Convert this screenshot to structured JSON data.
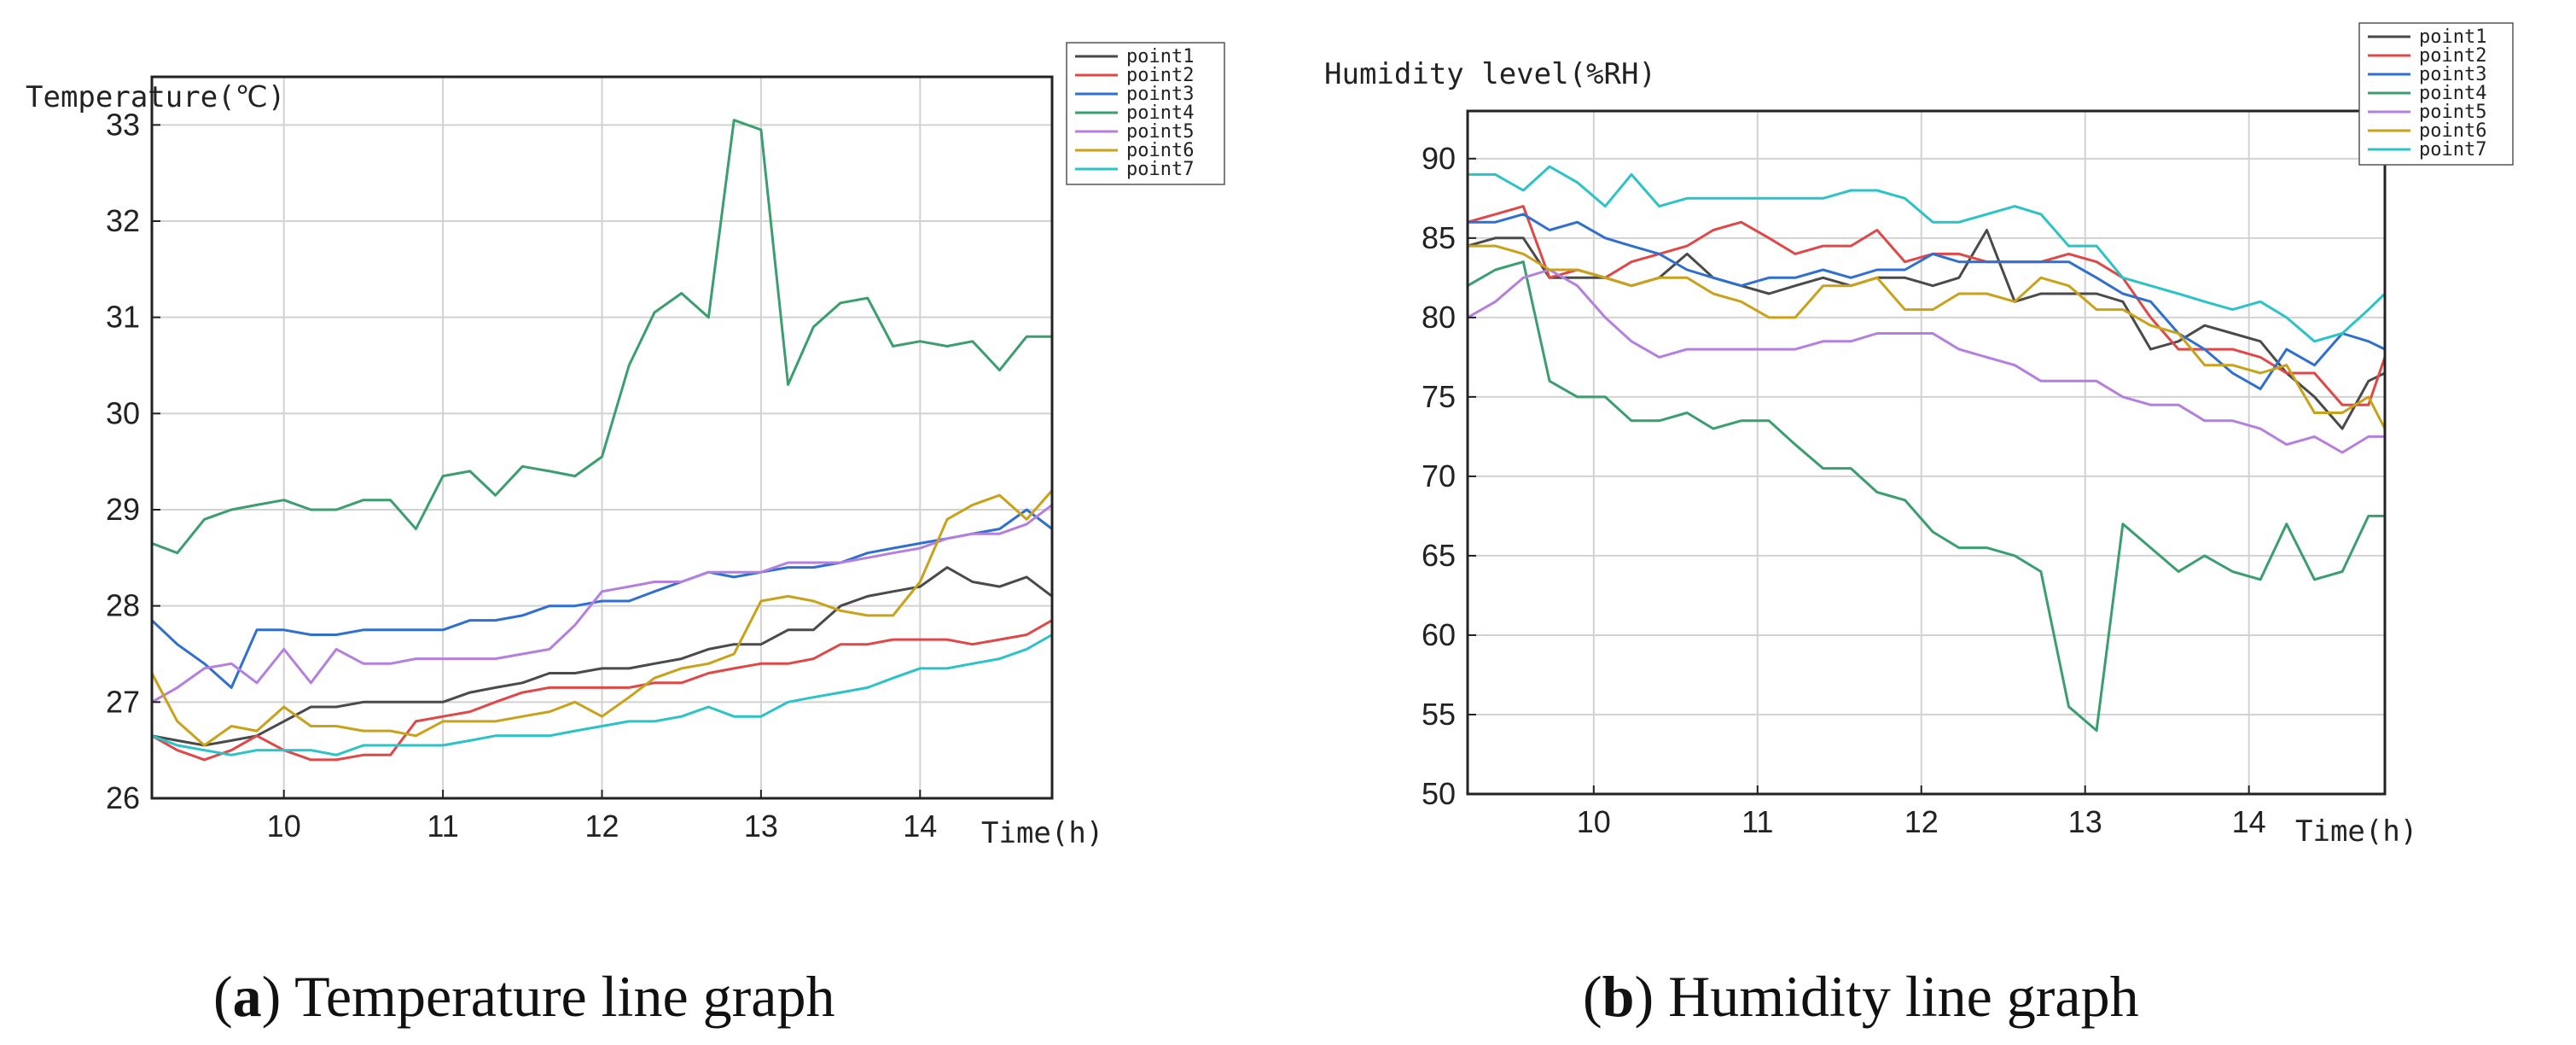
{
  "colors": {
    "point1": "#4a4a4a",
    "point2": "#e04848",
    "point3": "#2f6fd0",
    "point4": "#3a9e6e",
    "point5": "#b57fe0",
    "point6": "#c9a21a",
    "point7": "#2cc3c8"
  },
  "charts": [
    {
      "key": "a",
      "caption_letter": "a",
      "caption_text": "Temperature line graph",
      "ylabel": "Temperature(℃)",
      "xlabel": "Time(h)",
      "legend": [
        "point1",
        "point2",
        "point3",
        "point4",
        "point5",
        "point6",
        "point7"
      ]
    },
    {
      "key": "b",
      "caption_letter": "b",
      "caption_text": "Humidity line graph",
      "ylabel": "Humidity level(%RH)",
      "xlabel": "Time(h)",
      "legend": [
        "point1",
        "point2",
        "point3",
        "point4",
        "point5",
        "point6",
        "point7"
      ]
    }
  ],
  "chart_data": [
    {
      "type": "line",
      "title": "Temperature line graph",
      "xlabel": "Time(h)",
      "ylabel": "Temperature(℃)",
      "xlim": [
        9.17,
        14.83
      ],
      "ylim": [
        26,
        33.5
      ],
      "xticks": [
        10,
        11,
        12,
        13,
        14
      ],
      "yticks": [
        26,
        27,
        28,
        29,
        30,
        31,
        32,
        33
      ],
      "grid": true,
      "legend_position": "top-right",
      "x": [
        9.17,
        9.33,
        9.5,
        9.67,
        9.83,
        10.0,
        10.17,
        10.33,
        10.5,
        10.67,
        10.83,
        11.0,
        11.17,
        11.33,
        11.5,
        11.67,
        11.83,
        12.0,
        12.17,
        12.33,
        12.5,
        12.67,
        12.83,
        13.0,
        13.17,
        13.33,
        13.5,
        13.67,
        13.83,
        14.0,
        14.17,
        14.33,
        14.5,
        14.67,
        14.83
      ],
      "series": [
        {
          "name": "point1",
          "values": [
            26.65,
            26.6,
            26.55,
            26.6,
            26.65,
            26.8,
            26.95,
            26.95,
            27.0,
            27.0,
            27.0,
            27.0,
            27.1,
            27.15,
            27.2,
            27.3,
            27.3,
            27.35,
            27.35,
            27.4,
            27.45,
            27.55,
            27.6,
            27.6,
            27.75,
            27.75,
            28.0,
            28.1,
            28.15,
            28.2,
            28.4,
            28.25,
            28.2,
            28.3,
            28.1
          ]
        },
        {
          "name": "point2",
          "values": [
            26.65,
            26.5,
            26.4,
            26.5,
            26.65,
            26.5,
            26.4,
            26.4,
            26.45,
            26.45,
            26.8,
            26.85,
            26.9,
            27.0,
            27.1,
            27.15,
            27.15,
            27.15,
            27.15,
            27.2,
            27.2,
            27.3,
            27.35,
            27.4,
            27.4,
            27.45,
            27.6,
            27.6,
            27.65,
            27.65,
            27.65,
            27.6,
            27.65,
            27.7,
            27.85
          ]
        },
        {
          "name": "point3",
          "values": [
            27.85,
            27.6,
            27.4,
            27.15,
            27.75,
            27.75,
            27.7,
            27.7,
            27.75,
            27.75,
            27.75,
            27.75,
            27.85,
            27.85,
            27.9,
            28.0,
            28.0,
            28.05,
            28.05,
            28.15,
            28.25,
            28.35,
            28.3,
            28.35,
            28.4,
            28.4,
            28.45,
            28.55,
            28.6,
            28.65,
            28.7,
            28.75,
            28.8,
            29.0,
            28.8
          ]
        },
        {
          "name": "point4",
          "values": [
            28.65,
            28.55,
            28.9,
            29.0,
            29.05,
            29.1,
            29.0,
            29.0,
            29.1,
            29.1,
            28.8,
            29.35,
            29.4,
            29.15,
            29.45,
            29.4,
            29.35,
            29.55,
            30.5,
            31.05,
            31.25,
            31.0,
            33.05,
            32.95,
            30.3,
            30.9,
            31.15,
            31.2,
            30.7,
            30.75,
            30.7,
            30.75,
            30.45,
            30.8,
            30.8
          ]
        },
        {
          "name": "point5",
          "values": [
            27.0,
            27.15,
            27.35,
            27.4,
            27.2,
            27.55,
            27.2,
            27.55,
            27.4,
            27.4,
            27.45,
            27.45,
            27.45,
            27.45,
            27.5,
            27.55,
            27.8,
            28.15,
            28.2,
            28.25,
            28.25,
            28.35,
            28.35,
            28.35,
            28.45,
            28.45,
            28.45,
            28.5,
            28.55,
            28.6,
            28.7,
            28.75,
            28.75,
            28.85,
            29.05
          ]
        },
        {
          "name": "point6",
          "values": [
            27.3,
            26.8,
            26.55,
            26.75,
            26.7,
            26.95,
            26.75,
            26.75,
            26.7,
            26.7,
            26.65,
            26.8,
            26.8,
            26.8,
            26.85,
            26.9,
            27.0,
            26.85,
            27.05,
            27.25,
            27.35,
            27.4,
            27.5,
            28.05,
            28.1,
            28.05,
            27.95,
            27.9,
            27.9,
            28.25,
            28.9,
            29.05,
            29.15,
            28.9,
            29.2
          ]
        },
        {
          "name": "point7",
          "values": [
            26.65,
            26.55,
            26.5,
            26.45,
            26.5,
            26.5,
            26.5,
            26.45,
            26.55,
            26.55,
            26.55,
            26.55,
            26.6,
            26.65,
            26.65,
            26.65,
            26.7,
            26.75,
            26.8,
            26.8,
            26.85,
            26.95,
            26.85,
            26.85,
            27.0,
            27.05,
            27.1,
            27.15,
            27.25,
            27.35,
            27.35,
            27.4,
            27.45,
            27.55,
            27.7
          ]
        }
      ]
    },
    {
      "type": "line",
      "title": "Humidity line graph",
      "xlabel": "Time(h)",
      "ylabel": "Humidity level(%RH)",
      "xlim": [
        9.23,
        14.83
      ],
      "ylim": [
        50,
        93
      ],
      "xticks": [
        10,
        11,
        12,
        13,
        14
      ],
      "yticks": [
        50,
        55,
        60,
        65,
        70,
        75,
        80,
        85,
        90
      ],
      "grid": true,
      "legend_position": "top-right",
      "x": [
        9.23,
        9.4,
        9.57,
        9.73,
        9.9,
        10.07,
        10.23,
        10.4,
        10.57,
        10.73,
        10.9,
        11.07,
        11.23,
        11.4,
        11.57,
        11.73,
        11.9,
        12.07,
        12.23,
        12.4,
        12.57,
        12.73,
        12.9,
        13.07,
        13.23,
        13.4,
        13.57,
        13.73,
        13.9,
        14.07,
        14.23,
        14.4,
        14.57,
        14.73,
        14.83
      ],
      "series": [
        {
          "name": "point1",
          "values": [
            84.5,
            85.0,
            85.0,
            82.5,
            82.5,
            82.5,
            82.0,
            82.5,
            84.0,
            82.5,
            82.0,
            81.5,
            82.0,
            82.5,
            82.0,
            82.5,
            82.5,
            82.0,
            82.5,
            85.5,
            81.0,
            81.5,
            81.5,
            81.5,
            81.0,
            78.0,
            78.5,
            79.5,
            79.0,
            78.5,
            76.5,
            75.0,
            73.0,
            76.0,
            76.5
          ]
        },
        {
          "name": "point2",
          "values": [
            86.0,
            86.5,
            87.0,
            82.5,
            83.0,
            82.5,
            83.5,
            84.0,
            84.5,
            85.5,
            86.0,
            85.0,
            84.0,
            84.5,
            84.5,
            85.5,
            83.5,
            84.0,
            84.0,
            83.5,
            83.5,
            83.5,
            84.0,
            83.5,
            82.5,
            80.0,
            78.0,
            78.0,
            78.0,
            77.5,
            76.5,
            76.5,
            74.5,
            74.5,
            77.5
          ]
        },
        {
          "name": "point3",
          "values": [
            86.0,
            86.0,
            86.5,
            85.5,
            86.0,
            85.0,
            84.5,
            84.0,
            83.0,
            82.5,
            82.0,
            82.5,
            82.5,
            83.0,
            82.5,
            83.0,
            83.0,
            84.0,
            83.5,
            83.5,
            83.5,
            83.5,
            83.5,
            82.5,
            81.5,
            81.0,
            79.0,
            78.0,
            76.5,
            75.5,
            78.0,
            77.0,
            79.0,
            78.5,
            78.0
          ]
        },
        {
          "name": "point4",
          "values": [
            82.0,
            83.0,
            83.5,
            76.0,
            75.0,
            75.0,
            73.5,
            73.5,
            74.0,
            73.0,
            73.5,
            73.5,
            72.0,
            70.5,
            70.5,
            69.0,
            68.5,
            66.5,
            65.5,
            65.5,
            65.0,
            64.0,
            55.5,
            54.0,
            67.0,
            65.5,
            64.0,
            65.0,
            64.0,
            63.5,
            67.0,
            63.5,
            64.0,
            67.5,
            67.5
          ]
        },
        {
          "name": "point5",
          "values": [
            80.0,
            81.0,
            82.5,
            83.0,
            82.0,
            80.0,
            78.5,
            77.5,
            78.0,
            78.0,
            78.0,
            78.0,
            78.0,
            78.5,
            78.5,
            79.0,
            79.0,
            79.0,
            78.0,
            77.5,
            77.0,
            76.0,
            76.0,
            76.0,
            75.0,
            74.5,
            74.5,
            73.5,
            73.5,
            73.0,
            72.0,
            72.5,
            71.5,
            72.5,
            72.5
          ]
        },
        {
          "name": "point6",
          "values": [
            84.5,
            84.5,
            84.0,
            83.0,
            83.0,
            82.5,
            82.0,
            82.5,
            82.5,
            81.5,
            81.0,
            80.0,
            80.0,
            82.0,
            82.0,
            82.5,
            80.5,
            80.5,
            81.5,
            81.5,
            81.0,
            82.5,
            82.0,
            80.5,
            80.5,
            79.5,
            79.0,
            77.0,
            77.0,
            76.5,
            77.0,
            74.0,
            74.0,
            75.0,
            73.0
          ]
        },
        {
          "name": "point7",
          "values": [
            89.0,
            89.0,
            88.0,
            89.5,
            88.5,
            87.0,
            89.0,
            87.0,
            87.5,
            87.5,
            87.5,
            87.5,
            87.5,
            87.5,
            88.0,
            88.0,
            87.5,
            86.0,
            86.0,
            86.5,
            87.0,
            86.5,
            84.5,
            84.5,
            82.5,
            82.0,
            81.5,
            81.0,
            80.5,
            81.0,
            80.0,
            78.5,
            79.0,
            80.5,
            81.5
          ]
        }
      ]
    }
  ]
}
